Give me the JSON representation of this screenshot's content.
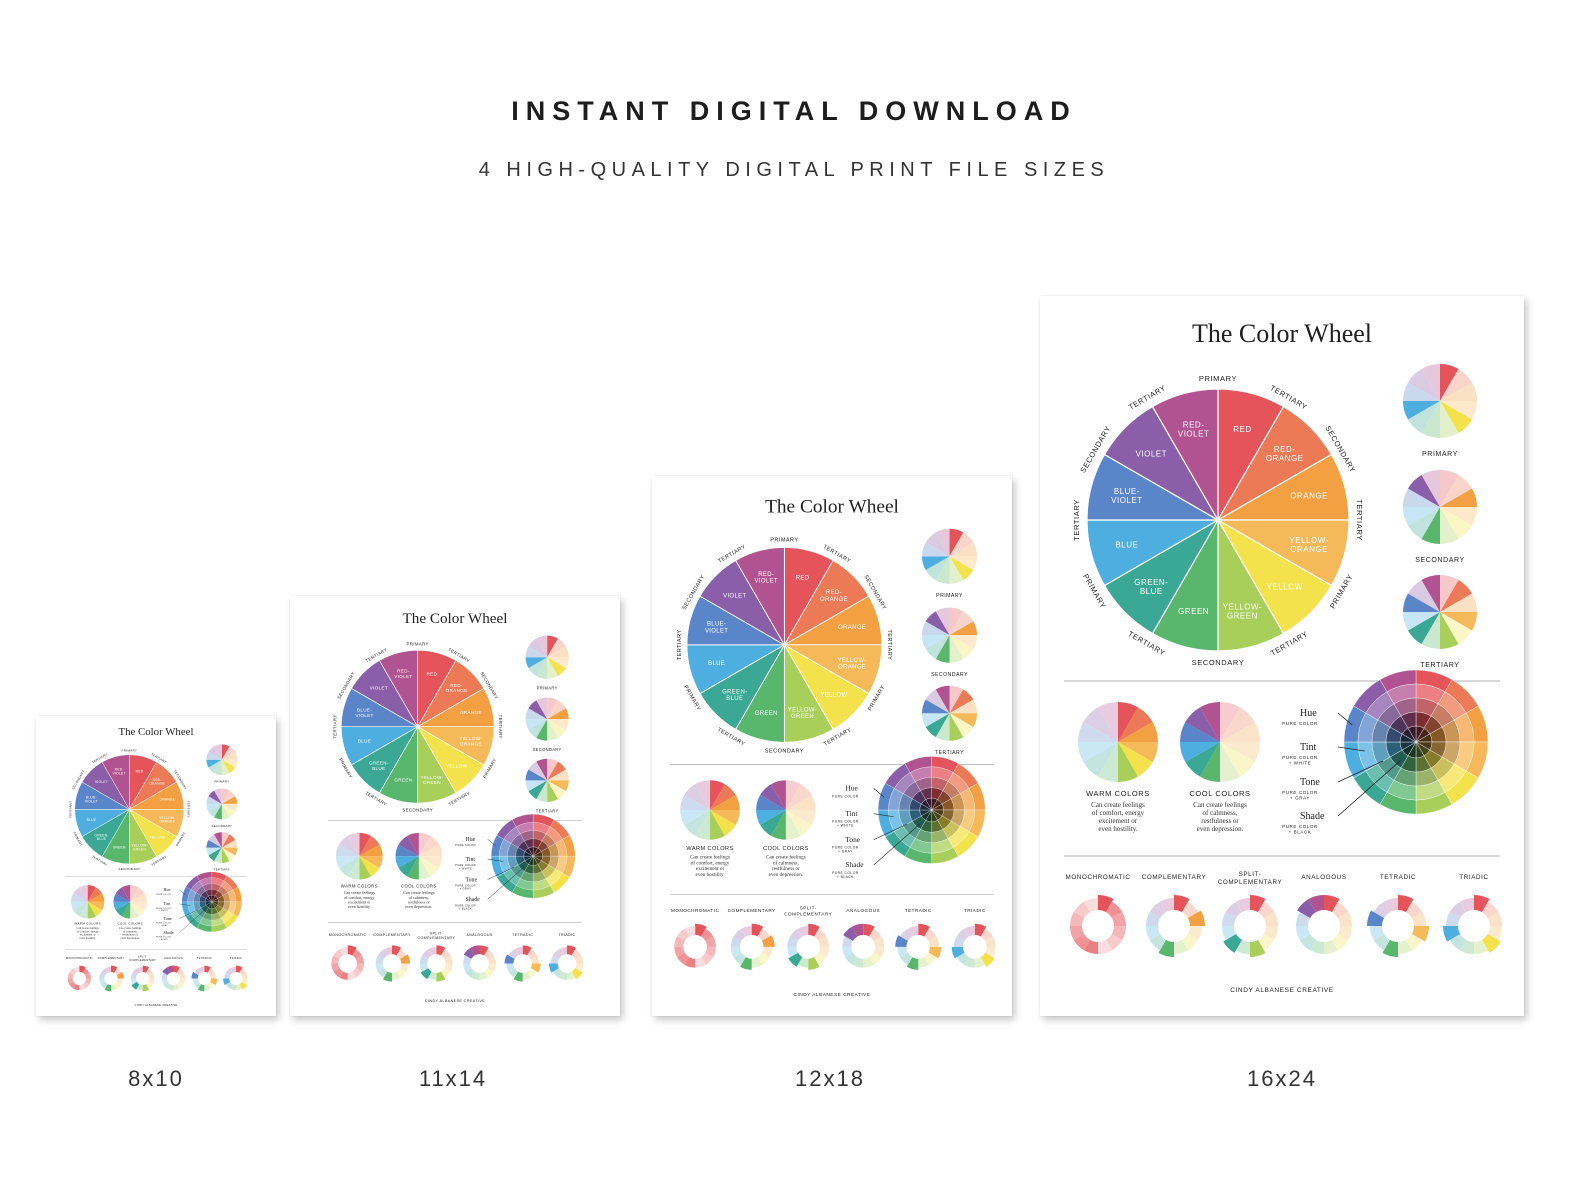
{
  "header": {
    "title": "INSTANT DIGITAL DOWNLOAD",
    "subtitle": "4 HIGH-QUALITY DIGITAL PRINT FILE SIZES"
  },
  "colors": {
    "red": "#e5545a",
    "red_orange": "#ec7a56",
    "orange": "#f3a043",
    "yellow_orange": "#f5b95a",
    "yellow": "#f3e24c",
    "yellow_green": "#a9cf5b",
    "green": "#58b66d",
    "green_blue": "#3aa895",
    "blue": "#4eaee0",
    "blue_violet": "#5a86c9",
    "violet": "#8a5ea9",
    "red_violet": "#b25391"
  },
  "poster": {
    "title": "The Color Wheel",
    "wheel_labels": [
      "RED",
      "RED-\nORANGE",
      "ORANGE",
      "YELLOW-\nORANGE",
      "YELLOW",
      "YELLOW-\nGREEN",
      "GREEN",
      "GREEN-\nBLUE",
      "BLUE",
      "BLUE-\nVIOLET",
      "VIOLET",
      "RED-\nVIOLET"
    ],
    "ring_labels": [
      "PRIMARY",
      "TERTIARY",
      "SECONDARY",
      "TERTIARY",
      "PRIMARY",
      "TERTIARY",
      "SECONDARY",
      "TERTIARY",
      "PRIMARY",
      "TERTIARY",
      "SECONDARY",
      "TERTIARY"
    ],
    "mini_labels": [
      "PRIMARY",
      "SECONDARY",
      "TERTIARY"
    ],
    "warm_label": "WARM COLORS",
    "warm_text": [
      "Can create feelings",
      "of comfort, energy",
      "excitement or",
      "even hostility."
    ],
    "cool_label": "COOL COLORS",
    "cool_text": [
      "Can create feelings",
      "of calmness,",
      "restfulness or",
      "even depression."
    ],
    "hue_items": [
      {
        "name": "Hue",
        "sub": [
          "PURE COLOR"
        ]
      },
      {
        "name": "Tint",
        "sub": [
          "PURE COLOR",
          "+ WHITE"
        ]
      },
      {
        "name": "Tone",
        "sub": [
          "PURE COLOR",
          "+ GRAY"
        ]
      },
      {
        "name": "Shade",
        "sub": [
          "PURE COLOR",
          "+ BLACK"
        ]
      }
    ],
    "harmonies": [
      "MONOCHROMATIC",
      "COMPLEMENTARY",
      "SPLIT-\nCOMPLEMENTARY",
      "ANALOGOUS",
      "TETRADIC",
      "TRIADIC"
    ],
    "credit": "CINDY ALBANESE CREATIVE"
  },
  "sizes": [
    {
      "label": "8x10"
    },
    {
      "label": "11x14"
    },
    {
      "label": "12x18"
    },
    {
      "label": "16x24"
    }
  ]
}
